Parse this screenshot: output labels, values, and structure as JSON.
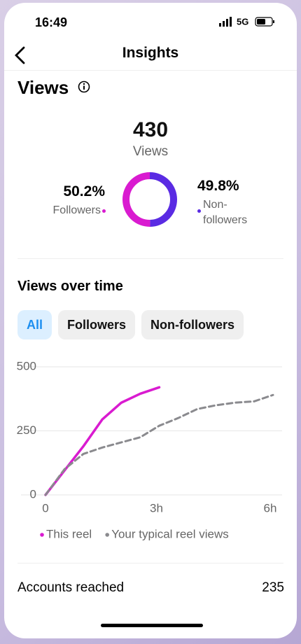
{
  "status_bar": {
    "time": "16:49",
    "network": "5G"
  },
  "header": {
    "title": "Insights"
  },
  "views": {
    "title": "Views",
    "total": 430,
    "total_label": "Views"
  },
  "views_over_time": {
    "title": "Views over time",
    "filters": [
      "All",
      "Followers",
      "Non-followers"
    ],
    "active_filter": 0
  },
  "chart_data": [
    {
      "type": "donut",
      "categories": [
        "Followers",
        "Non-followers"
      ],
      "values": [
        50.2,
        49.8
      ],
      "value_labels": [
        "50.2%",
        "49.8%"
      ],
      "colors": [
        "#d91bd0",
        "#5a2be3"
      ]
    },
    {
      "type": "line",
      "x": [
        0,
        0.5,
        1,
        1.5,
        2,
        2.5,
        3,
        3.5,
        4,
        4.5,
        5,
        5.5,
        6
      ],
      "series": [
        {
          "name": "This reel",
          "color": "#d91bd0",
          "dashed": false,
          "values": [
            0,
            95,
            190,
            295,
            360,
            395,
            420,
            null,
            null,
            null,
            null,
            null,
            null
          ]
        },
        {
          "name": "Your typical reel views",
          "color": "#8a8a8e",
          "dashed": true,
          "values": [
            0,
            100,
            160,
            185,
            205,
            225,
            270,
            300,
            335,
            350,
            360,
            365,
            390
          ]
        }
      ],
      "xlim": [
        0,
        6
      ],
      "xticks": [
        0,
        {
          "value": 3,
          "label": "3h"
        },
        {
          "value": 6,
          "label": "6h"
        }
      ],
      "ylim": [
        0,
        500
      ],
      "yticks": [
        0,
        250,
        500
      ],
      "grid": true
    }
  ],
  "accounts_reached": {
    "label": "Accounts reached",
    "value": 235
  }
}
